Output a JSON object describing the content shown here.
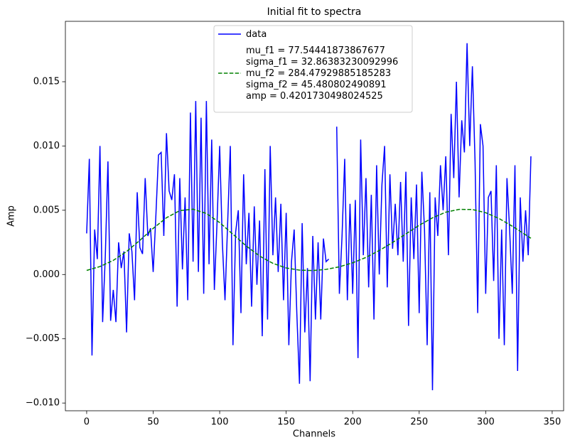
{
  "chart_data": {
    "type": "line",
    "title": "Initial fit to spectra",
    "x_label": "Channels",
    "y_label": "Amp",
    "xlim": [
      -16.0,
      358.6
    ],
    "ylim": [
      -0.0106,
      0.0197
    ],
    "xticks": [
      0,
      50,
      100,
      150,
      200,
      250,
      300,
      350
    ],
    "yticks": [
      {
        "value": -0.01,
        "label": "−0.010"
      },
      {
        "value": -0.005,
        "label": "−0.005"
      },
      {
        "value": 0,
        "label": "0.000"
      },
      {
        "value": 0.005,
        "label": "0.005"
      },
      {
        "value": 0.01,
        "label": "0.010"
      },
      {
        "value": 0.015,
        "label": "0.015"
      }
    ],
    "grid": false,
    "legend": "upper center",
    "series": [
      {
        "name": "data",
        "color": "#0000ff",
        "style": "solid",
        "x": [
          0,
          2,
          4,
          6,
          8,
          10,
          12,
          14,
          16,
          18,
          20,
          22,
          24,
          26,
          28,
          30,
          32,
          34,
          36,
          38,
          40,
          42,
          44,
          46,
          48,
          50,
          52,
          54,
          56,
          58,
          60,
          62,
          64,
          66,
          68,
          70,
          72,
          74,
          76,
          78,
          80,
          82,
          84,
          86,
          88,
          90,
          92,
          94,
          96,
          98,
          100,
          102,
          104,
          106,
          108,
          110,
          112,
          114,
          116,
          118,
          120,
          122,
          124,
          126,
          128,
          130,
          132,
          134,
          136,
          138,
          140,
          142,
          144,
          146,
          148,
          150,
          152,
          154,
          156,
          158,
          160,
          162,
          164,
          166,
          168,
          170,
          172,
          174,
          176,
          178,
          180,
          182,
          184,
          186,
          188,
          190,
          192,
          194,
          196,
          198,
          200,
          202,
          204,
          206,
          208,
          210,
          212,
          214,
          216,
          218,
          220,
          222,
          224,
          226,
          228,
          230,
          232,
          234,
          236,
          238,
          240,
          242,
          244,
          246,
          248,
          250,
          252,
          254,
          256,
          258,
          260,
          262,
          264,
          266,
          268,
          270,
          272,
          274,
          276,
          278,
          280,
          282,
          284,
          286,
          288,
          290,
          292,
          294,
          296,
          298,
          300,
          302,
          304,
          306,
          308,
          310,
          312,
          314,
          316,
          318,
          320,
          322,
          324,
          326,
          328,
          330,
          332,
          334
        ],
        "values": [
          0.0032,
          0.009,
          -0.0063,
          0.0035,
          0.0012,
          0.01,
          -0.0037,
          0.0014,
          0.0088,
          -0.0036,
          -0.0012,
          -0.0037,
          0.0025,
          0.0005,
          0.0018,
          -0.0045,
          0.0032,
          0.0018,
          -0.002,
          0.0064,
          0.0021,
          0.0016,
          0.0075,
          0.003,
          0.0036,
          0.0002,
          0.0045,
          0.0093,
          0.0095,
          0.003,
          0.011,
          0.0065,
          0.0058,
          0.0078,
          -0.0025,
          0.0075,
          0.0004,
          0.006,
          -0.002,
          0.0126,
          0.001,
          0.0135,
          0.0002,
          0.0122,
          -0.0015,
          0.0135,
          0.0008,
          0.0105,
          -0.0012,
          0.004,
          0.01,
          0.0025,
          -0.002,
          0.004,
          0.01,
          -0.0055,
          0.0033,
          0.005,
          -0.003,
          0.0078,
          0.0008,
          0.0048,
          -0.0025,
          0.0053,
          -0.0008,
          0.0042,
          -0.0048,
          0.0082,
          -0.0035,
          0.01,
          0.0015,
          0.006,
          0.0002,
          0.0055,
          -0.002,
          0.0048,
          -0.0055,
          0.001,
          0.0035,
          -0.003,
          -0.0085,
          0.004,
          -0.0045,
          0.0005,
          -0.0083,
          0.003,
          -0.0035,
          0.0025,
          -0.0035,
          0.0028,
          0.001,
          0.0012,
          null,
          null,
          0.0115,
          -0.0015,
          0.003,
          0.009,
          -0.002,
          0.0055,
          -0.0015,
          0.0058,
          -0.0065,
          0.0105,
          0.0015,
          0.0075,
          -0.001,
          0.0062,
          -0.0035,
          0.0085,
          0.0,
          0.007,
          0.01,
          -0.001,
          0.0078,
          0.002,
          0.0055,
          0.0015,
          0.0072,
          0.001,
          0.008,
          -0.004,
          0.006,
          0.0012,
          0.007,
          -0.003,
          0.008,
          0.0035,
          -0.0055,
          0.0064,
          -0.009,
          0.006,
          0.003,
          0.0085,
          0.005,
          0.0092,
          0.0015,
          0.0125,
          0.0075,
          0.015,
          0.006,
          0.012,
          0.0095,
          0.018,
          0.01,
          0.0162,
          0.0088,
          -0.003,
          0.0117,
          0.01,
          -0.0015,
          0.006,
          0.0065,
          -0.0005,
          0.0085,
          -0.005,
          0.0035,
          -0.0055,
          0.0075,
          0.0035,
          -0.0015,
          0.0085,
          -0.0075,
          0.006,
          0.001,
          0.005,
          0.0015,
          0.0092
        ]
      },
      {
        "name": "mu_f1 = 77.54441873867677\nsigma_f1 = 32.86383230092996\nmu_f2 = 284.47929885185283\nsigma_f2 = 45.480802490891\namp = 0.4201730498024525",
        "color": "#008000",
        "style": "dashed",
        "x": [
          0,
          10,
          20,
          30,
          40,
          50,
          60,
          70,
          80,
          90,
          100,
          110,
          120,
          130,
          140,
          150,
          160,
          170,
          180,
          190,
          200,
          210,
          220,
          230,
          240,
          250,
          260,
          270,
          280,
          290,
          300,
          310,
          320,
          330,
          334
        ],
        "values": [
          0.00032,
          0.00062,
          0.0011,
          0.00179,
          0.00266,
          0.00359,
          0.00442,
          0.00497,
          0.00508,
          0.00475,
          0.00404,
          0.00313,
          0.00222,
          0.00144,
          0.00087,
          0.00051,
          0.00034,
          0.00031,
          0.0004,
          0.0006,
          0.00091,
          0.00133,
          0.00187,
          0.00249,
          0.00316,
          0.00383,
          0.00441,
          0.00485,
          0.00507,
          0.00506,
          0.00481,
          0.00436,
          0.00376,
          0.00309,
          0.00282
        ]
      }
    ]
  }
}
